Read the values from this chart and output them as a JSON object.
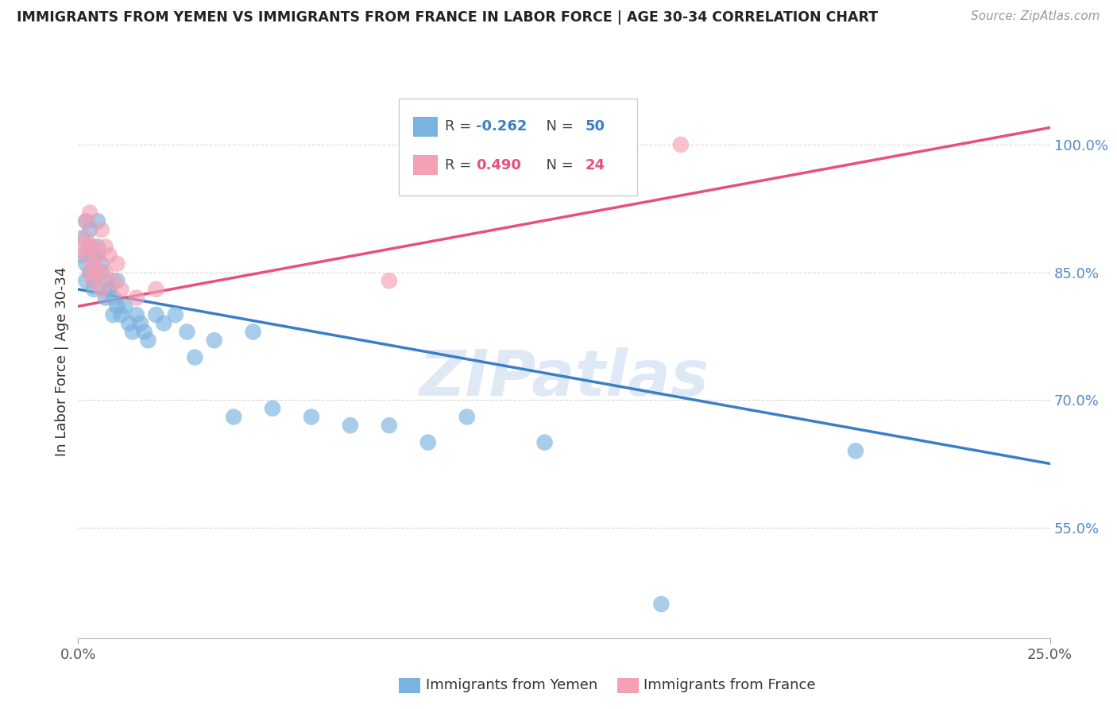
{
  "title": "IMMIGRANTS FROM YEMEN VS IMMIGRANTS FROM FRANCE IN LABOR FORCE | AGE 30-34 CORRELATION CHART",
  "source": "Source: ZipAtlas.com",
  "ylabel": "In Labor Force | Age 30-34",
  "y_tick_vals": [
    0.55,
    0.7,
    0.85,
    1.0
  ],
  "xlim": [
    0.0,
    0.25
  ],
  "ylim": [
    0.42,
    1.07
  ],
  "legend_blue_label": "Immigrants from Yemen",
  "legend_pink_label": "Immigrants from France",
  "r_blue": -0.262,
  "n_blue": 50,
  "r_pink": 0.49,
  "n_pink": 24,
  "blue_color": "#7ab3e0",
  "pink_color": "#f4a0b5",
  "line_blue": "#3a7ec8",
  "line_pink": "#e8507a",
  "watermark": "ZIPatlas",
  "background_color": "#ffffff",
  "grid_color": "#d8d8d8",
  "blue_x": [
    0.001,
    0.001,
    0.002,
    0.002,
    0.002,
    0.003,
    0.003,
    0.003,
    0.003,
    0.004,
    0.004,
    0.004,
    0.005,
    0.005,
    0.005,
    0.006,
    0.006,
    0.007,
    0.007,
    0.008,
    0.008,
    0.009,
    0.009,
    0.01,
    0.01,
    0.011,
    0.012,
    0.013,
    0.014,
    0.015,
    0.016,
    0.017,
    0.018,
    0.02,
    0.022,
    0.025,
    0.028,
    0.03,
    0.035,
    0.04,
    0.045,
    0.05,
    0.06,
    0.07,
    0.08,
    0.09,
    0.1,
    0.12,
    0.15,
    0.2
  ],
  "blue_y": [
    0.87,
    0.89,
    0.91,
    0.86,
    0.84,
    0.88,
    0.87,
    0.85,
    0.9,
    0.83,
    0.87,
    0.84,
    0.91,
    0.88,
    0.87,
    0.86,
    0.85,
    0.82,
    0.84,
    0.83,
    0.83,
    0.8,
    0.82,
    0.81,
    0.84,
    0.8,
    0.81,
    0.79,
    0.78,
    0.8,
    0.79,
    0.78,
    0.77,
    0.8,
    0.79,
    0.8,
    0.78,
    0.75,
    0.77,
    0.68,
    0.78,
    0.69,
    0.68,
    0.67,
    0.67,
    0.65,
    0.68,
    0.65,
    0.46,
    0.64
  ],
  "pink_x": [
    0.001,
    0.002,
    0.002,
    0.002,
    0.003,
    0.003,
    0.003,
    0.004,
    0.004,
    0.004,
    0.005,
    0.005,
    0.006,
    0.006,
    0.007,
    0.007,
    0.008,
    0.009,
    0.01,
    0.011,
    0.015,
    0.02,
    0.08,
    0.155
  ],
  "pink_y": [
    0.88,
    0.91,
    0.87,
    0.89,
    0.92,
    0.88,
    0.85,
    0.88,
    0.86,
    0.84,
    0.87,
    0.85,
    0.9,
    0.83,
    0.88,
    0.85,
    0.87,
    0.84,
    0.86,
    0.83,
    0.82,
    0.83,
    0.84,
    1.0
  ],
  "blue_line_x": [
    0.0,
    0.25
  ],
  "blue_line_y": [
    0.83,
    0.625
  ],
  "pink_line_x": [
    0.0,
    0.25
  ],
  "pink_line_y": [
    0.81,
    1.02
  ]
}
